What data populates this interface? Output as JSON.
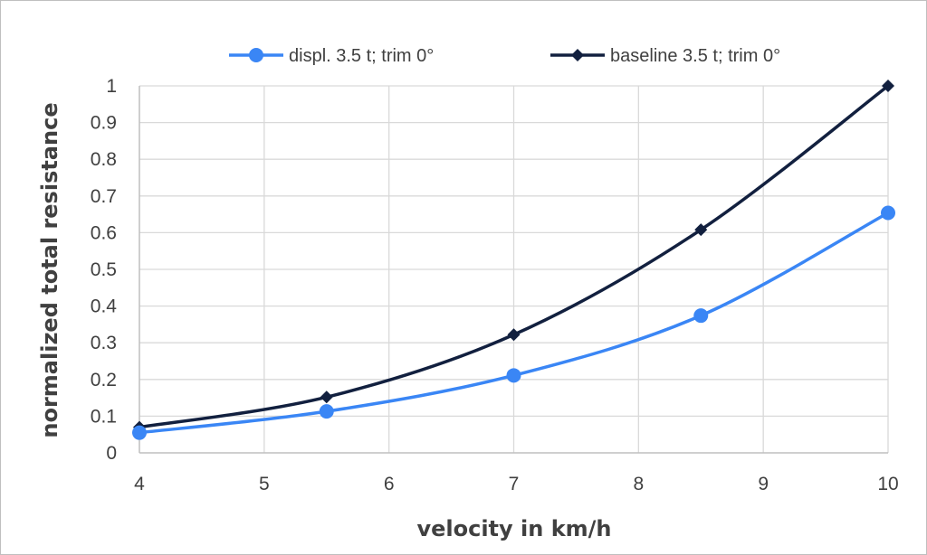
{
  "chart_data": {
    "type": "line",
    "title": "",
    "xlabel": "velocity in km/h",
    "ylabel": "normalized total resistance",
    "xlim": [
      4,
      10
    ],
    "ylim": [
      0,
      1
    ],
    "x_ticks": [
      "4",
      "5",
      "6",
      "7",
      "8",
      "9",
      "10"
    ],
    "y_ticks": [
      "0",
      "0.1",
      "0.2",
      "0.3",
      "0.4",
      "0.5",
      "0.6",
      "0.7",
      "0.8",
      "0.9",
      "1"
    ],
    "grid": true,
    "legend_position": "top",
    "smooth": true,
    "series": [
      {
        "name": "displ. 3.5 t; trim 0°",
        "color": "#3a86f5",
        "marker": "circle",
        "x": [
          4,
          5.5,
          7,
          8.5,
          10
        ],
        "y": [
          0.055,
          0.113,
          0.211,
          0.374,
          0.654
        ]
      },
      {
        "name": "baseline 3.5 t; trim 0°",
        "color": "#12203f",
        "marker": "diamond",
        "x": [
          4,
          5.5,
          7,
          8.5,
          10
        ],
        "y": [
          0.07,
          0.152,
          0.322,
          0.608,
          1.0
        ]
      }
    ]
  }
}
